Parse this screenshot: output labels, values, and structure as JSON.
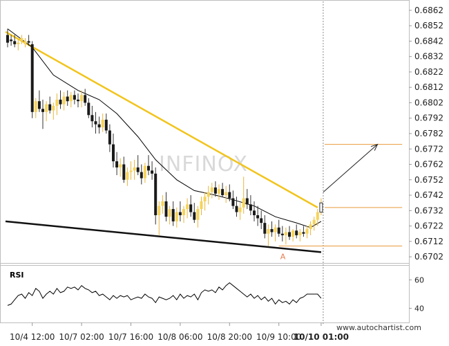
{
  "chart_data": {
    "type": "candlestick",
    "watermark": "INFINOX",
    "credit": "www.autochartist.com",
    "price_axis": {
      "ylim": [
        0.6698,
        0.6866
      ],
      "ticks": [
        "0.6862",
        "0.6852",
        "0.6842",
        "0.6832",
        "0.6822",
        "0.6812",
        "0.6802",
        "0.6792",
        "0.6782",
        "0.6772",
        "0.6762",
        "0.6752",
        "0.6742",
        "0.6732",
        "0.6722",
        "0.6712",
        "0.6702"
      ]
    },
    "x_labels": [
      {
        "text": "10/4 12:00",
        "bar": 7,
        "bold": false
      },
      {
        "text": "10/7 02:00",
        "bar": 21,
        "bold": false
      },
      {
        "text": "10/7 16:00",
        "bar": 35,
        "bold": false
      },
      {
        "text": "10/8 06:00",
        "bar": 49,
        "bold": false
      },
      {
        "text": "10/8 20:00",
        "bar": 63,
        "bold": false
      },
      {
        "text": "10/9 10:00",
        "bar": 77,
        "bold": false
      },
      {
        "text": "10/10 01:00",
        "bar": 89,
        "bold": true
      }
    ],
    "candles": [
      [
        0.6846,
        0.685,
        0.6838,
        0.6841
      ],
      [
        0.6843,
        0.6846,
        0.6839,
        0.6842
      ],
      [
        0.6842,
        0.6846,
        0.6838,
        0.684
      ],
      [
        0.684,
        0.6843,
        0.6836,
        0.6841
      ],
      [
        0.6842,
        0.6846,
        0.684,
        0.6844
      ],
      [
        0.684,
        0.6844,
        0.6838,
        0.6842
      ],
      [
        0.6842,
        0.6846,
        0.6839,
        0.6841
      ],
      [
        0.684,
        0.6842,
        0.6792,
        0.6796
      ],
      [
        0.6796,
        0.6805,
        0.6792,
        0.6803
      ],
      [
        0.6803,
        0.681,
        0.6796,
        0.6798
      ],
      [
        0.6798,
        0.6804,
        0.6785,
        0.6796
      ],
      [
        0.6796,
        0.6803,
        0.679,
        0.6801
      ],
      [
        0.6801,
        0.6806,
        0.6795,
        0.6797
      ],
      [
        0.6797,
        0.6802,
        0.6791,
        0.68
      ],
      [
        0.68,
        0.6808,
        0.6794,
        0.6804
      ],
      [
        0.6804,
        0.681,
        0.6798,
        0.6801
      ],
      [
        0.6801,
        0.6809,
        0.6797,
        0.6806
      ],
      [
        0.6806,
        0.681,
        0.68,
        0.6803
      ],
      [
        0.6803,
        0.6809,
        0.6799,
        0.6807
      ],
      [
        0.6807,
        0.681,
        0.6801,
        0.6804
      ],
      [
        0.6804,
        0.6808,
        0.6799,
        0.6803
      ],
      [
        0.6803,
        0.681,
        0.6799,
        0.6807
      ],
      [
        0.6807,
        0.6811,
        0.68,
        0.6802
      ],
      [
        0.6802,
        0.6805,
        0.6792,
        0.6794
      ],
      [
        0.6794,
        0.68,
        0.6786,
        0.679
      ],
      [
        0.679,
        0.6796,
        0.6782,
        0.6788
      ],
      [
        0.6788,
        0.6793,
        0.6782,
        0.6786
      ],
      [
        0.6786,
        0.6795,
        0.6783,
        0.6791
      ],
      [
        0.6791,
        0.6795,
        0.6782,
        0.6784
      ],
      [
        0.6784,
        0.6788,
        0.677,
        0.6775
      ],
      [
        0.6775,
        0.6782,
        0.676,
        0.6764
      ],
      [
        0.6764,
        0.677,
        0.6755,
        0.676
      ],
      [
        0.676,
        0.6766,
        0.6754,
        0.6762
      ],
      [
        0.6762,
        0.6767,
        0.675,
        0.6752
      ],
      [
        0.6752,
        0.676,
        0.6748,
        0.6757
      ],
      [
        0.6757,
        0.6764,
        0.6752,
        0.6758
      ],
      [
        0.6758,
        0.6765,
        0.6752,
        0.676
      ],
      [
        0.676,
        0.6768,
        0.6755,
        0.6757
      ],
      [
        0.6757,
        0.6762,
        0.6749,
        0.6753
      ],
      [
        0.6753,
        0.6763,
        0.675,
        0.6761
      ],
      [
        0.6761,
        0.6768,
        0.6755,
        0.6758
      ],
      [
        0.6758,
        0.6764,
        0.6752,
        0.6756
      ],
      [
        0.6756,
        0.676,
        0.6723,
        0.6729
      ],
      [
        0.6729,
        0.6738,
        0.6716,
        0.6735
      ],
      [
        0.6735,
        0.6742,
        0.673,
        0.6738
      ],
      [
        0.6738,
        0.6744,
        0.6725,
        0.6728
      ],
      [
        0.6728,
        0.6735,
        0.6723,
        0.6733
      ],
      [
        0.6733,
        0.6738,
        0.6722,
        0.6725
      ],
      [
        0.6725,
        0.6734,
        0.6721,
        0.6731
      ],
      [
        0.6731,
        0.6738,
        0.6725,
        0.6729
      ],
      [
        0.6729,
        0.6735,
        0.6724,
        0.6733
      ],
      [
        0.6733,
        0.674,
        0.6727,
        0.6736
      ],
      [
        0.6736,
        0.6742,
        0.6728,
        0.6731
      ],
      [
        0.6731,
        0.6737,
        0.6724,
        0.6726
      ],
      [
        0.6726,
        0.6735,
        0.6721,
        0.6733
      ],
      [
        0.6733,
        0.6741,
        0.6729,
        0.6738
      ],
      [
        0.6738,
        0.6744,
        0.6732,
        0.6741
      ],
      [
        0.6741,
        0.6748,
        0.6736,
        0.6744
      ],
      [
        0.6744,
        0.675,
        0.674,
        0.6747
      ],
      [
        0.6747,
        0.6751,
        0.6741,
        0.6743
      ],
      [
        0.6743,
        0.6749,
        0.6739,
        0.6746
      ],
      [
        0.6746,
        0.675,
        0.6741,
        0.6742
      ],
      [
        0.6742,
        0.6748,
        0.6737,
        0.6744
      ],
      [
        0.6744,
        0.6749,
        0.6738,
        0.674
      ],
      [
        0.674,
        0.6745,
        0.6733,
        0.6735
      ],
      [
        0.6735,
        0.6741,
        0.6728,
        0.6731
      ],
      [
        0.6731,
        0.6737,
        0.6726,
        0.6734
      ],
      [
        0.6734,
        0.6754,
        0.673,
        0.674
      ],
      [
        0.674,
        0.6746,
        0.6733,
        0.6736
      ],
      [
        0.6736,
        0.6742,
        0.6729,
        0.6732
      ],
      [
        0.6732,
        0.6738,
        0.6725,
        0.6729
      ],
      [
        0.6729,
        0.6735,
        0.6722,
        0.6727
      ],
      [
        0.6727,
        0.6732,
        0.672,
        0.6724
      ],
      [
        0.6724,
        0.6729,
        0.6714,
        0.6717
      ],
      [
        0.6717,
        0.6723,
        0.6709,
        0.672
      ],
      [
        0.672,
        0.6725,
        0.6715,
        0.6718
      ],
      [
        0.6718,
        0.6723,
        0.6712,
        0.6721
      ],
      [
        0.6721,
        0.6726,
        0.6715,
        0.6717
      ],
      [
        0.6717,
        0.6722,
        0.6712,
        0.6716
      ],
      [
        0.6716,
        0.6721,
        0.671,
        0.6718
      ],
      [
        0.6718,
        0.6722,
        0.6713,
        0.6715
      ],
      [
        0.6715,
        0.672,
        0.6712,
        0.6719
      ],
      [
        0.6719,
        0.6723,
        0.6714,
        0.6716
      ],
      [
        0.6716,
        0.672,
        0.6712,
        0.6718
      ],
      [
        0.6718,
        0.6722,
        0.6715,
        0.6717
      ],
      [
        0.6717,
        0.6722,
        0.6714,
        0.672
      ],
      [
        0.672,
        0.6725,
        0.6716,
        0.6723
      ],
      [
        0.6723,
        0.6728,
        0.6719,
        0.6726
      ],
      [
        0.6726,
        0.6733,
        0.6722,
        0.6731
      ],
      [
        0.6731,
        0.674,
        0.6729,
        0.6737
      ]
    ],
    "moving_average": {
      "color": "#000000",
      "points": [
        [
          0,
          0.685
        ],
        [
          7,
          0.6838
        ],
        [
          13,
          0.682
        ],
        [
          20,
          0.681
        ],
        [
          26,
          0.6804
        ],
        [
          31,
          0.6795
        ],
        [
          37,
          0.678
        ],
        [
          42,
          0.6765
        ],
        [
          48,
          0.6752
        ],
        [
          53,
          0.6745
        ],
        [
          59,
          0.6742
        ],
        [
          64,
          0.6739
        ],
        [
          70,
          0.6735
        ],
        [
          76,
          0.6728
        ],
        [
          82,
          0.6724
        ],
        [
          86,
          0.6721
        ],
        [
          89,
          0.6725
        ]
      ]
    },
    "trendlines": [
      {
        "name": "resistance",
        "color": "#f2c41b",
        "from": [
          0,
          0.6848
        ],
        "to": [
          88,
          0.6734
        ]
      },
      {
        "name": "support",
        "color": "#111111",
        "from": [
          0,
          0.6725
        ],
        "to": [
          89,
          0.6705
        ]
      }
    ],
    "levels": [
      {
        "value": 0.6775,
        "from_bar": 90,
        "to_bar": 112,
        "color": "#e89a3c"
      },
      {
        "value": 0.6734,
        "from_bar": 90,
        "to_bar": 112,
        "color": "#e89a3c"
      },
      {
        "value": 0.6709,
        "from_bar": 77,
        "to_bar": 112,
        "color": "#e89a3c"
      }
    ],
    "forecast_arrow": {
      "from": [
        90,
        0.6744
      ],
      "to": [
        105,
        0.6775
      ]
    },
    "point_label": {
      "text": "A",
      "bar": 78,
      "value": 0.6705
    },
    "rsi": {
      "label": "RSI",
      "ylim": [
        30,
        70
      ],
      "ticks": [
        "60",
        "40"
      ],
      "values": [
        42,
        43,
        46,
        49,
        50,
        47,
        51,
        49,
        54,
        52,
        47,
        50,
        52,
        50,
        54,
        51,
        52,
        55,
        54,
        55,
        53,
        56,
        54,
        53,
        51,
        52,
        49,
        50,
        48,
        46,
        49,
        47,
        49,
        48,
        49,
        46,
        47,
        48,
        47,
        50,
        48,
        47,
        44,
        48,
        47,
        46,
        47,
        49,
        46,
        50,
        47,
        49,
        48,
        50,
        46,
        51,
        53,
        52,
        53,
        51,
        55,
        53,
        56,
        58,
        56,
        54,
        52,
        50,
        48,
        50,
        47,
        49,
        46,
        48,
        45,
        47,
        43,
        46,
        44,
        45,
        43,
        46,
        44,
        47,
        48,
        50,
        50,
        50,
        50,
        47
      ]
    }
  }
}
